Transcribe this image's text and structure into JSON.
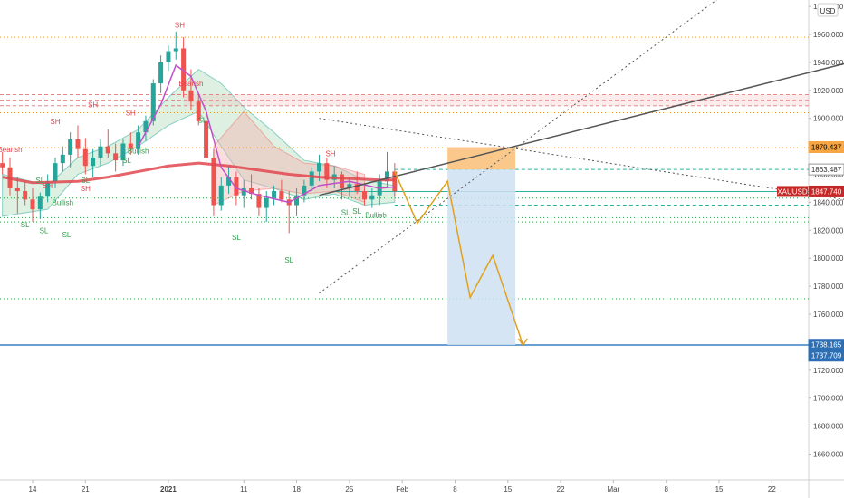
{
  "chart_data": {
    "type": "candlestick",
    "symbol": "XAUUSD",
    "currency": "USD",
    "colors": {
      "up": "#26a69a",
      "down": "#ef5350",
      "sma": "#e0464f",
      "ema": "#c050c8",
      "cloud_green": "#9ed4a8",
      "cloud_red": "#f3b4b4",
      "orange_dotted": "#e09b2a",
      "green_dotted": "#2e9f4b",
      "red_dashed": "#e06666",
      "teal": "#2bb3a0",
      "blue": "#3a7fc4",
      "forecast": "#e0a020",
      "target_box": "#cfe0f1",
      "stop_box": "#f9c27e",
      "trend": "#555555",
      "axis_text": "#444444"
    },
    "y_ticks": [
      "1980.000",
      "1960.000",
      "1940.000",
      "1920.000",
      "1900.000",
      "1880.000",
      "1860.000",
      "1840.000",
      "1820.000",
      "1800.000",
      "1780.000",
      "1760.000",
      "1740.000",
      "1720.000",
      "1700.000",
      "1680.000",
      "1660.000"
    ],
    "y_range": [
      1640,
      1982
    ],
    "x_ticks": [
      {
        "day": 0,
        "label": "14"
      },
      {
        "day": 7,
        "label": "21"
      },
      {
        "day": 18,
        "label": "2021"
      },
      {
        "day": 28,
        "label": "11"
      },
      {
        "day": 35,
        "label": "18"
      },
      {
        "day": 42,
        "label": "25"
      },
      {
        "day": 49,
        "label": "Feb"
      },
      {
        "day": 56,
        "label": "8"
      },
      {
        "day": 63,
        "label": "15"
      },
      {
        "day": 70,
        "label": "22"
      },
      {
        "day": 77,
        "label": "Mar"
      },
      {
        "day": 84,
        "label": "8"
      },
      {
        "day": 91,
        "label": "15"
      },
      {
        "day": 98,
        "label": "22"
      }
    ],
    "price_labels": [
      {
        "value": 1879.437,
        "label": "1879.437",
        "bg": "#f7a643",
        "fg": "#000000"
      },
      {
        "value": 1863.487,
        "label": "1863.487",
        "bg": "#ffffff",
        "fg": "#333333"
      },
      {
        "value": 1847.74,
        "label": "1847.740",
        "bg": "#c62828",
        "fg": "#ffffff",
        "tag": "XAUUSD"
      },
      {
        "value": 1738.165,
        "label": "1738.165",
        "bg": "#2d6fb5",
        "fg": "#ffffff"
      },
      {
        "value": 1737.709,
        "label": "1737.709",
        "bg": "#2d6fb5",
        "fg": "#ffffff"
      }
    ],
    "h_lines": {
      "orange_dotted": [
        1958,
        1904,
        1879
      ],
      "red_dashed": [
        1917,
        1913,
        1909
      ],
      "green_dotted": [
        1843,
        1829,
        1826,
        1771
      ],
      "teal_solid": [
        1847.74
      ],
      "teal_dashed": [
        1863.5,
        1838
      ],
      "blue_solid": [
        1738
      ]
    },
    "candles": [
      [
        -4,
        1868,
        1876,
        1860,
        1865
      ],
      [
        -3,
        1865,
        1872,
        1845,
        1850
      ],
      [
        -2,
        1850,
        1858,
        1832,
        1848
      ],
      [
        -1,
        1848,
        1855,
        1838,
        1842
      ],
      [
        0,
        1842,
        1850,
        1826,
        1835
      ],
      [
        1,
        1835,
        1847,
        1828,
        1844
      ],
      [
        2,
        1844,
        1860,
        1840,
        1855
      ],
      [
        3,
        1855,
        1872,
        1850,
        1868
      ],
      [
        4,
        1868,
        1880,
        1862,
        1874
      ],
      [
        5,
        1874,
        1890,
        1865,
        1885
      ],
      [
        6,
        1885,
        1895,
        1872,
        1878
      ],
      [
        7,
        1878,
        1886,
        1860,
        1866
      ],
      [
        8,
        1866,
        1878,
        1858,
        1872
      ],
      [
        9,
        1872,
        1885,
        1866,
        1880
      ],
      [
        10,
        1880,
        1892,
        1872,
        1875
      ],
      [
        11,
        1875,
        1882,
        1862,
        1870
      ],
      [
        12,
        1870,
        1885,
        1866,
        1882
      ],
      [
        13,
        1882,
        1890,
        1874,
        1878
      ],
      [
        14,
        1878,
        1895,
        1874,
        1890
      ],
      [
        15,
        1890,
        1902,
        1884,
        1898
      ],
      [
        16,
        1898,
        1928,
        1895,
        1925
      ],
      [
        17,
        1925,
        1945,
        1918,
        1940
      ],
      [
        18,
        1940,
        1952,
        1934,
        1948
      ],
      [
        19,
        1948,
        1962,
        1942,
        1950
      ],
      [
        20,
        1950,
        1958,
        1915,
        1920
      ],
      [
        21,
        1920,
        1935,
        1906,
        1912
      ],
      [
        22,
        1912,
        1918,
        1895,
        1898
      ],
      [
        23,
        1898,
        1902,
        1868,
        1872
      ],
      [
        24,
        1872,
        1878,
        1830,
        1838
      ],
      [
        25,
        1838,
        1858,
        1834,
        1852
      ],
      [
        26,
        1852,
        1866,
        1846,
        1858
      ],
      [
        27,
        1858,
        1862,
        1838,
        1845
      ],
      [
        28,
        1845,
        1856,
        1836,
        1850
      ],
      [
        29,
        1850,
        1860,
        1842,
        1846
      ],
      [
        30,
        1846,
        1850,
        1830,
        1836
      ],
      [
        31,
        1836,
        1848,
        1826,
        1843
      ],
      [
        32,
        1843,
        1852,
        1838,
        1848
      ],
      [
        33,
        1848,
        1856,
        1840,
        1842
      ],
      [
        34,
        1842,
        1848,
        1818,
        1838
      ],
      [
        35,
        1838,
        1850,
        1830,
        1845
      ],
      [
        36,
        1845,
        1856,
        1840,
        1852
      ],
      [
        37,
        1852,
        1865,
        1848,
        1862
      ],
      [
        38,
        1862,
        1874,
        1855,
        1868
      ],
      [
        39,
        1868,
        1872,
        1850,
        1856
      ],
      [
        40,
        1856,
        1866,
        1850,
        1860
      ],
      [
        41,
        1860,
        1862,
        1842,
        1850
      ],
      [
        42,
        1850,
        1858,
        1844,
        1853
      ],
      [
        43,
        1853,
        1862,
        1846,
        1848
      ],
      [
        44,
        1848,
        1852,
        1838,
        1842
      ],
      [
        45,
        1842,
        1850,
        1836,
        1845
      ],
      [
        46,
        1845,
        1860,
        1838,
        1855
      ],
      [
        47,
        1855,
        1876,
        1850,
        1862
      ],
      [
        48,
        1862,
        1868,
        1844,
        1848
      ]
    ],
    "sma_red": [
      [
        -4,
        1858
      ],
      [
        0,
        1854
      ],
      [
        6,
        1855
      ],
      [
        10,
        1858
      ],
      [
        14,
        1862
      ],
      [
        18,
        1866
      ],
      [
        22,
        1868
      ],
      [
        26,
        1866
      ],
      [
        30,
        1863
      ],
      [
        34,
        1860
      ],
      [
        38,
        1858
      ],
      [
        42,
        1857
      ],
      [
        46,
        1856
      ],
      [
        48,
        1856
      ]
    ],
    "ema_purple": [
      [
        14,
        1880
      ],
      [
        17,
        1910
      ],
      [
        19,
        1938
      ],
      [
        21,
        1930
      ],
      [
        23,
        1905
      ],
      [
        25,
        1865
      ],
      [
        27,
        1850
      ],
      [
        30,
        1845
      ],
      [
        34,
        1840
      ],
      [
        38,
        1852
      ],
      [
        42,
        1855
      ],
      [
        46,
        1850
      ],
      [
        48,
        1851
      ]
    ],
    "forecast_path": [
      [
        48,
        1862
      ],
      [
        51,
        1825
      ],
      [
        55,
        1855
      ],
      [
        58,
        1772
      ],
      [
        61,
        1802
      ],
      [
        65,
        1738
      ]
    ],
    "boxes": {
      "stop": {
        "x0": 55,
        "x1": 64,
        "y0": 1863.5,
        "y1": 1879.4
      },
      "target": {
        "x0": 55,
        "x1": 64,
        "y0": 1738,
        "y1": 1863.5
      }
    },
    "trend_lines": [
      {
        "from": [
          38,
          1845
        ],
        "to": [
          112,
          1945
        ],
        "style": "solid"
      },
      {
        "from": [
          38,
          1775
        ],
        "to": [
          92,
          1990
        ],
        "style": "dotted"
      },
      {
        "from": [
          38,
          1900
        ],
        "to": [
          110,
          1840
        ],
        "style": "dotted"
      }
    ],
    "annotations": [
      {
        "day": 8,
        "price": 1908,
        "text": "SH",
        "color": "#e0464f"
      },
      {
        "day": 13,
        "price": 1902,
        "text": "SH",
        "color": "#e0464f"
      },
      {
        "day": 3,
        "price": 1896,
        "text": "SH",
        "color": "#e0464f"
      },
      {
        "day": 19.5,
        "price": 1965,
        "text": "SH",
        "color": "#e0464f"
      },
      {
        "day": 39.5,
        "price": 1873,
        "text": "SH",
        "color": "#e0464f"
      },
      {
        "day": 2,
        "price": 1850,
        "text": "SH",
        "color": "#e0464f"
      },
      {
        "day": 7,
        "price": 1848,
        "text": "SH",
        "color": "#e0464f"
      },
      {
        "day": 21,
        "price": 1923,
        "text": "Bearish",
        "color": "#e0464f"
      },
      {
        "day": -3,
        "price": 1876,
        "text": "Bearish",
        "color": "#e0464f"
      },
      {
        "day": 14,
        "price": 1875,
        "text": "Bullish",
        "color": "#2e9f4b"
      },
      {
        "day": 4,
        "price": 1838,
        "text": "Bullish",
        "color": "#2e9f4b"
      },
      {
        "day": 45.5,
        "price": 1829,
        "text": "Bullish",
        "color": "#2e9f4b"
      },
      {
        "day": 12.5,
        "price": 1868,
        "text": "SL",
        "color": "#2e9f4b"
      },
      {
        "day": 7,
        "price": 1854,
        "text": "SL",
        "color": "#2e9f4b"
      },
      {
        "day": 1,
        "price": 1854,
        "text": "SL",
        "color": "#2e9f4b"
      },
      {
        "day": -1,
        "price": 1822,
        "text": "SL",
        "color": "#2e9f4b"
      },
      {
        "day": 1.5,
        "price": 1818,
        "text": "SL",
        "color": "#2e9f4b"
      },
      {
        "day": 4.5,
        "price": 1815,
        "text": "SL",
        "color": "#2e9f4b"
      },
      {
        "day": 22.5,
        "price": 1897,
        "text": "SL",
        "color": "#2e9f4b"
      },
      {
        "day": 27,
        "price": 1813,
        "text": "SL",
        "color": "#2e9f4b"
      },
      {
        "day": 34,
        "price": 1797,
        "text": "SL",
        "color": "#2e9f4b"
      },
      {
        "day": 41.5,
        "price": 1831,
        "text": "SL",
        "color": "#2e9f4b"
      },
      {
        "day": 43,
        "price": 1832,
        "text": "SL",
        "color": "#2e9f4b"
      }
    ]
  }
}
